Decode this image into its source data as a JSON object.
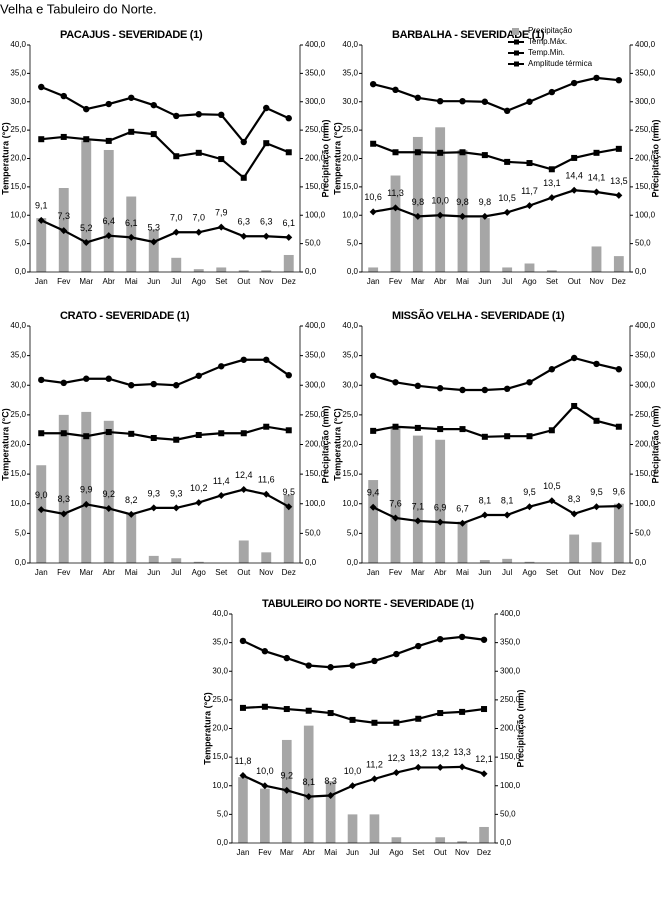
{
  "header": {
    "text": "Velha e Tabuleiro do Norte."
  },
  "chart_data": [
    {
      "type": "combo",
      "title": "PACAJUS - SEVERIDADE (1)",
      "ylabel": "Temperatura (°C)",
      "y2label": "Precipitação (mm)",
      "categories": [
        "Jan",
        "Fev",
        "Mar",
        "Abr",
        "Mai",
        "Jun",
        "Jul",
        "Ago",
        "Set",
        "Out",
        "Nov",
        "Dez"
      ],
      "ylim": [
        0,
        40
      ],
      "yticks": [
        {
          "value": 0,
          "label": "0,0"
        },
        {
          "value": 5,
          "label": "5,0"
        },
        {
          "value": 10,
          "label": "10,0"
        },
        {
          "value": 15,
          "label": "15,0"
        },
        {
          "value": 20,
          "label": "20,0"
        },
        {
          "value": 25,
          "label": "25,0"
        },
        {
          "value": 30,
          "label": "30,0"
        },
        {
          "value": 35,
          "label": "35,0"
        },
        {
          "value": 40,
          "label": "40,0"
        }
      ],
      "y2lim": [
        0,
        400
      ],
      "y2ticks": [
        {
          "value": 0,
          "label": "0,0"
        },
        {
          "value": 50,
          "label": "50,0"
        },
        {
          "value": 100,
          "label": "100,0"
        },
        {
          "value": 150,
          "label": "150,0"
        },
        {
          "value": 200,
          "label": "200,0"
        },
        {
          "value": 250,
          "label": "250,0"
        },
        {
          "value": 300,
          "label": "300,0"
        },
        {
          "value": 350,
          "label": "350,0"
        },
        {
          "value": 400,
          "label": "400,0"
        }
      ],
      "series": [
        {
          "type": "bar",
          "axis": "y2",
          "color": "#a6a6a6",
          "values": [
            95,
            148,
            232,
            215,
            133,
            75,
            25,
            5,
            8,
            3,
            3,
            30
          ]
        },
        {
          "type": "line",
          "marker": "circle",
          "color": "#000000",
          "values": [
            32.6,
            31.0,
            28.7,
            29.6,
            30.7,
            29.4,
            27.5,
            27.8,
            27.7,
            22.9,
            28.9,
            27.1
          ]
        },
        {
          "type": "line",
          "marker": "square",
          "color": "#000000",
          "values": [
            23.4,
            23.8,
            23.4,
            23.1,
            24.7,
            24.3,
            20.4,
            21.0,
            19.9,
            16.6,
            22.7,
            21.1
          ]
        },
        {
          "type": "line",
          "marker": "diamond",
          "color": "#000000",
          "values": [
            9.1,
            7.3,
            5.2,
            6.4,
            6.1,
            5.3,
            7.0,
            7.0,
            7.9,
            6.3,
            6.3,
            6.1
          ],
          "value_labels": [
            "9,1",
            "7,3",
            "5,2",
            "6,4",
            "6,1",
            "5,3",
            "7,0",
            "7,0",
            "7,9",
            "6,3",
            "6,3",
            "6,1"
          ]
        }
      ]
    },
    {
      "type": "combo",
      "title": "BARBALHA - SEVERIDADE (1)",
      "ylabel": "Temperatura (°C)",
      "y2label": "Precipitação (mm)",
      "legend": "top-right",
      "categories": [
        "Jan",
        "Fev",
        "Mar",
        "Abr",
        "Mai",
        "Jun",
        "Jul",
        "Ago",
        "Set",
        "Out",
        "Nov",
        "Dez"
      ],
      "ylim": [
        0,
        40
      ],
      "yticks": [
        {
          "value": 0,
          "label": "0,0"
        },
        {
          "value": 5,
          "label": "5,0"
        },
        {
          "value": 10,
          "label": "10,0"
        },
        {
          "value": 15,
          "label": "15,0"
        },
        {
          "value": 20,
          "label": "20,0"
        },
        {
          "value": 25,
          "label": "25,0"
        },
        {
          "value": 30,
          "label": "30,0"
        },
        {
          "value": 35,
          "label": "35,0"
        },
        {
          "value": 40,
          "label": "40,0"
        }
      ],
      "y2lim": [
        0,
        400
      ],
      "y2ticks": [
        {
          "value": 0,
          "label": "0,0"
        },
        {
          "value": 50,
          "label": "50,0"
        },
        {
          "value": 100,
          "label": "100,0"
        },
        {
          "value": 150,
          "label": "150,0"
        },
        {
          "value": 200,
          "label": "200,0"
        },
        {
          "value": 250,
          "label": "250,0"
        },
        {
          "value": 300,
          "label": "300,0"
        },
        {
          "value": 350,
          "label": "350,0"
        },
        {
          "value": 400,
          "label": "400,0"
        }
      ],
      "series": [
        {
          "name": "Precipitação",
          "type": "bar",
          "axis": "y2",
          "color": "#a6a6a6",
          "values": [
            8,
            170,
            238,
            255,
            215,
            95,
            8,
            15,
            3,
            0,
            45,
            28
          ]
        },
        {
          "name": "Temp.Máx.",
          "type": "line",
          "marker": "circle",
          "color": "#000000",
          "values": [
            33.1,
            32.1,
            30.7,
            30.1,
            30.1,
            30.0,
            28.4,
            30.0,
            31.7,
            33.3,
            34.2,
            33.8
          ]
        },
        {
          "name": "Temp.Min.",
          "type": "line",
          "marker": "square",
          "color": "#000000",
          "values": [
            22.6,
            21.1,
            21.1,
            21.0,
            21.1,
            20.6,
            19.4,
            19.2,
            18.1,
            20.1,
            21.0,
            21.7
          ]
        },
        {
          "name": "Amplitude térmica",
          "type": "line",
          "marker": "diamond",
          "color": "#000000",
          "values": [
            10.6,
            11.3,
            9.8,
            10.0,
            9.8,
            9.8,
            10.5,
            11.7,
            13.1,
            14.4,
            14.1,
            13.5
          ],
          "value_labels": [
            "10,6",
            "11,3",
            "9,8",
            "10,0",
            "9,8",
            "9,8",
            "10,5",
            "11,7",
            "13,1",
            "14,4",
            "14,1",
            "13,5"
          ]
        }
      ]
    },
    {
      "type": "combo",
      "title": "CRATO - SEVERIDADE (1)",
      "ylabel": "Temperatura (°C)",
      "y2label": "Precipitação (mm)",
      "categories": [
        "Jan",
        "Fev",
        "Mar",
        "Abr",
        "Mai",
        "Jun",
        "Jul",
        "Ago",
        "Set",
        "Out",
        "Nov",
        "Dez"
      ],
      "ylim": [
        0,
        40
      ],
      "yticks": [
        {
          "value": 0,
          "label": "0,0"
        },
        {
          "value": 5,
          "label": "5,0"
        },
        {
          "value": 10,
          "label": "10,0"
        },
        {
          "value": 15,
          "label": "15,0"
        },
        {
          "value": 20,
          "label": "20,0"
        },
        {
          "value": 25,
          "label": "25,0"
        },
        {
          "value": 30,
          "label": "30,0"
        },
        {
          "value": 35,
          "label": "35,0"
        },
        {
          "value": 40,
          "label": "40,0"
        }
      ],
      "y2lim": [
        0,
        400
      ],
      "y2ticks": [
        {
          "value": 0,
          "label": "0,0"
        },
        {
          "value": 50,
          "label": "50,0"
        },
        {
          "value": 100,
          "label": "100,0"
        },
        {
          "value": 150,
          "label": "150,0"
        },
        {
          "value": 200,
          "label": "200,0"
        },
        {
          "value": 250,
          "label": "250,0"
        },
        {
          "value": 300,
          "label": "300,0"
        },
        {
          "value": 350,
          "label": "350,0"
        },
        {
          "value": 400,
          "label": "400,0"
        }
      ],
      "series": [
        {
          "type": "bar",
          "axis": "y2",
          "color": "#a6a6a6",
          "values": [
            165,
            250,
            255,
            240,
            85,
            12,
            8,
            2,
            0,
            38,
            18,
            115
          ]
        },
        {
          "type": "line",
          "marker": "circle",
          "color": "#000000",
          "values": [
            30.9,
            30.4,
            31.1,
            31.1,
            30.0,
            30.2,
            30.0,
            31.6,
            33.2,
            34.3,
            34.3,
            31.7
          ]
        },
        {
          "type": "line",
          "marker": "square",
          "color": "#000000",
          "values": [
            21.9,
            21.9,
            21.4,
            22.1,
            21.8,
            21.1,
            20.8,
            21.6,
            21.9,
            21.9,
            23.0,
            22.4
          ]
        },
        {
          "type": "line",
          "marker": "diamond",
          "color": "#000000",
          "values": [
            9.0,
            8.3,
            9.9,
            9.2,
            8.2,
            9.3,
            9.3,
            10.2,
            11.4,
            12.4,
            11.6,
            9.5
          ],
          "value_labels": [
            "9,0",
            "8,3",
            "9,9",
            "9,2",
            "8,2",
            "9,3",
            "9,3",
            "10,2",
            "11,4",
            "12,4",
            "11,6",
            "9,5"
          ]
        }
      ]
    },
    {
      "type": "combo",
      "title": "MISSÃO VELHA - SEVERIDADE (1)",
      "ylabel": "Temperatura (°C)",
      "y2label": "Precipitação (mm)",
      "categories": [
        "Jan",
        "Fev",
        "Mar",
        "Abr",
        "Mai",
        "Jun",
        "Jul",
        "Ago",
        "Set",
        "Out",
        "Nov",
        "Dez"
      ],
      "ylim": [
        0,
        40
      ],
      "yticks": [
        {
          "value": 0,
          "label": "0,0"
        },
        {
          "value": 5,
          "label": "5,0"
        },
        {
          "value": 10,
          "label": "10,0"
        },
        {
          "value": 15,
          "label": "15,0"
        },
        {
          "value": 20,
          "label": "20,0"
        },
        {
          "value": 25,
          "label": "25,0"
        },
        {
          "value": 30,
          "label": "30,0"
        },
        {
          "value": 35,
          "label": "35,0"
        },
        {
          "value": 40,
          "label": "40,0"
        }
      ],
      "y2lim": [
        0,
        400
      ],
      "y2ticks": [
        {
          "value": 0,
          "label": "0,0"
        },
        {
          "value": 50,
          "label": "50,0"
        },
        {
          "value": 100,
          "label": "100,0"
        },
        {
          "value": 150,
          "label": "150,0"
        },
        {
          "value": 200,
          "label": "200,0"
        },
        {
          "value": 250,
          "label": "250,0"
        },
        {
          "value": 300,
          "label": "300,0"
        },
        {
          "value": 350,
          "label": "350,0"
        },
        {
          "value": 400,
          "label": "400,0"
        }
      ],
      "series": [
        {
          "type": "bar",
          "axis": "y2",
          "color": "#a6a6a6",
          "values": [
            140,
            230,
            215,
            208,
            70,
            5,
            7,
            2,
            0,
            48,
            35,
            100
          ]
        },
        {
          "type": "line",
          "marker": "circle",
          "color": "#000000",
          "values": [
            31.6,
            30.5,
            29.9,
            29.5,
            29.2,
            29.2,
            29.4,
            30.5,
            32.7,
            34.6,
            33.6,
            32.7
          ]
        },
        {
          "type": "line",
          "marker": "square",
          "color": "#000000",
          "values": [
            22.3,
            23.0,
            22.8,
            22.6,
            22.6,
            21.3,
            21.4,
            21.4,
            22.4,
            26.5,
            24.0,
            23.0
          ]
        },
        {
          "type": "line",
          "marker": "diamond",
          "color": "#000000",
          "values": [
            9.4,
            7.6,
            7.1,
            6.9,
            6.7,
            8.1,
            8.1,
            9.5,
            10.5,
            8.3,
            9.5,
            9.6
          ],
          "value_labels": [
            "9,4",
            "7,6",
            "7,1",
            "6,9",
            "6,7",
            "8,1",
            "8,1",
            "9,5",
            "10,5",
            "8,3",
            "9,5",
            "9,6"
          ]
        }
      ]
    },
    {
      "type": "combo",
      "title": "TABULEIRO DO NORTE - SEVERIDADE (1)",
      "ylabel": "Temperatura (°C)",
      "y2label": "Precipitação (mm)",
      "categories": [
        "Jan",
        "Fev",
        "Mar",
        "Abr",
        "Mai",
        "Jun",
        "Jul",
        "Ago",
        "Set",
        "Out",
        "Nov",
        "Dez"
      ],
      "ylim": [
        0,
        40
      ],
      "yticks": [
        {
          "value": 0,
          "label": "0,0"
        },
        {
          "value": 5,
          "label": "5,0"
        },
        {
          "value": 10,
          "label": "10,0"
        },
        {
          "value": 15,
          "label": "15,0"
        },
        {
          "value": 20,
          "label": "20,0"
        },
        {
          "value": 25,
          "label": "25,0"
        },
        {
          "value": 30,
          "label": "30,0"
        },
        {
          "value": 35,
          "label": "35,0"
        },
        {
          "value": 40,
          "label": "40,0"
        }
      ],
      "y2lim": [
        0,
        400
      ],
      "y2ticks": [
        {
          "value": 0,
          "label": "0,0"
        },
        {
          "value": 50,
          "label": "50,0"
        },
        {
          "value": 100,
          "label": "100,0"
        },
        {
          "value": 150,
          "label": "150,0"
        },
        {
          "value": 200,
          "label": "200,0"
        },
        {
          "value": 250,
          "label": "250,0"
        },
        {
          "value": 300,
          "label": "300,0"
        },
        {
          "value": 350,
          "label": "350,0"
        },
        {
          "value": 400,
          "label": "400,0"
        }
      ],
      "series": [
        {
          "type": "bar",
          "axis": "y2",
          "color": "#a6a6a6",
          "values": [
            115,
            95,
            180,
            205,
            108,
            50,
            50,
            10,
            0,
            10,
            3,
            28
          ]
        },
        {
          "type": "line",
          "marker": "circle",
          "color": "#000000",
          "values": [
            35.3,
            33.5,
            32.3,
            31.0,
            30.7,
            31.0,
            31.8,
            33.0,
            34.4,
            35.6,
            36.0,
            35.5
          ]
        },
        {
          "type": "line",
          "marker": "square",
          "color": "#000000",
          "values": [
            23.6,
            23.8,
            23.4,
            23.1,
            22.7,
            21.5,
            21.0,
            21.0,
            21.7,
            22.7,
            22.9,
            23.4
          ]
        },
        {
          "type": "line",
          "marker": "diamond",
          "color": "#000000",
          "values": [
            11.8,
            10.0,
            9.2,
            8.1,
            8.3,
            10.0,
            11.2,
            12.3,
            13.2,
            13.2,
            13.3,
            12.1
          ],
          "value_labels": [
            "11,8",
            "10,0",
            "9,2",
            "8,1",
            "8,3",
            "10,0",
            "11,2",
            "12,3",
            "13,2",
            "13,2",
            "13,3",
            "12,1"
          ]
        }
      ]
    }
  ]
}
